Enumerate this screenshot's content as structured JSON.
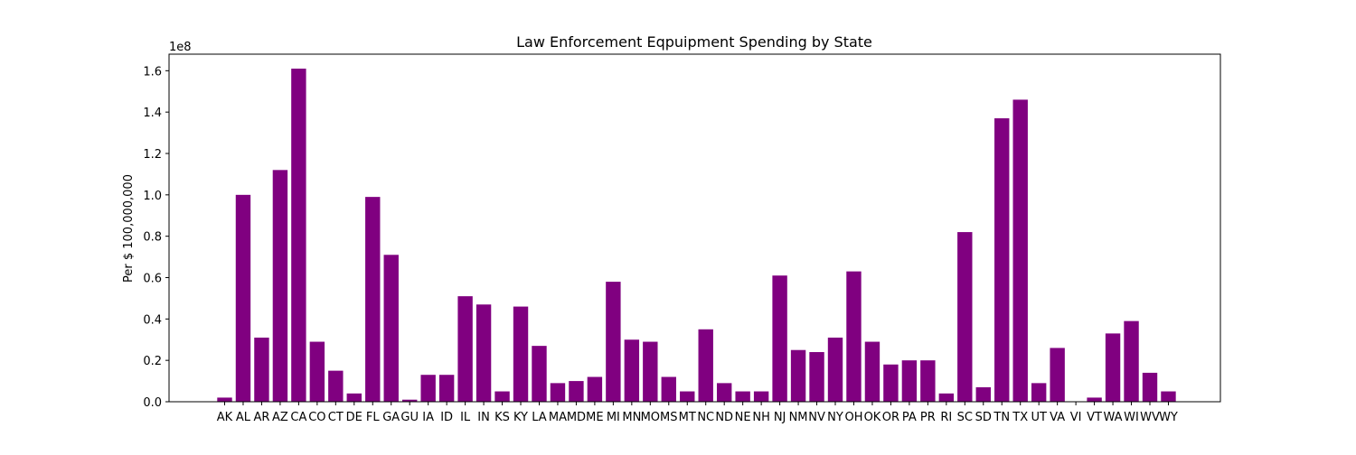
{
  "chart_data": {
    "type": "bar",
    "title": "Law Enforcement Eqpuipment Spending by State",
    "xlabel": "",
    "ylabel": "Per $ 100,000,000",
    "y_offset_label": "1e8",
    "ylim": [
      0,
      1.68
    ],
    "yticks": [
      "0.0",
      "0.2",
      "0.4",
      "0.6",
      "0.8",
      "1.0",
      "1.2",
      "1.4",
      "1.6"
    ],
    "grid": false,
    "bar_color": "#800080",
    "categories": [
      "AK",
      "AL",
      "AR",
      "AZ",
      "CA",
      "CO",
      "CT",
      "DE",
      "FL",
      "GA",
      "GU",
      "IA",
      "ID",
      "IL",
      "IN",
      "KS",
      "KY",
      "LA",
      "MA",
      "MD",
      "ME",
      "MI",
      "MN",
      "MO",
      "MS",
      "MT",
      "NC",
      "ND",
      "NE",
      "NH",
      "NJ",
      "NM",
      "NV",
      "NY",
      "OH",
      "OK",
      "OR",
      "PA",
      "PR",
      "RI",
      "SC",
      "SD",
      "TN",
      "TX",
      "UT",
      "VA",
      "VI",
      "VT",
      "WA",
      "WI",
      "WV",
      "WY"
    ],
    "values": [
      0.02,
      1.0,
      0.31,
      1.12,
      1.61,
      0.29,
      0.15,
      0.04,
      0.99,
      0.71,
      0.01,
      0.13,
      0.13,
      0.51,
      0.47,
      0.05,
      0.46,
      0.27,
      0.09,
      0.1,
      0.12,
      0.58,
      0.3,
      0.29,
      0.12,
      0.05,
      0.35,
      0.09,
      0.05,
      0.05,
      0.61,
      0.25,
      0.24,
      0.31,
      0.63,
      0.29,
      0.18,
      0.2,
      0.2,
      0.04,
      0.82,
      0.07,
      1.37,
      1.46,
      0.09,
      0.26,
      0.0,
      0.02,
      0.33,
      0.39,
      0.14,
      0.05
    ]
  }
}
